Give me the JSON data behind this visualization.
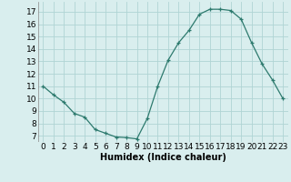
{
  "x": [
    0,
    1,
    2,
    3,
    4,
    5,
    6,
    7,
    8,
    9,
    10,
    11,
    12,
    13,
    14,
    15,
    16,
    17,
    18,
    19,
    20,
    21,
    22,
    23
  ],
  "y": [
    11,
    10.3,
    9.7,
    8.8,
    8.5,
    7.5,
    7.2,
    6.9,
    6.85,
    6.75,
    8.4,
    11.0,
    13.1,
    14.5,
    15.5,
    16.8,
    17.2,
    17.2,
    17.1,
    16.4,
    14.5,
    12.8,
    11.5,
    10.0
  ],
  "xlabel": "Humidex (Indice chaleur)",
  "xlim": [
    -0.5,
    23.5
  ],
  "ylim": [
    6.5,
    17.8
  ],
  "yticks": [
    7,
    8,
    9,
    10,
    11,
    12,
    13,
    14,
    15,
    16,
    17
  ],
  "xticks": [
    0,
    1,
    2,
    3,
    4,
    5,
    6,
    7,
    8,
    9,
    10,
    11,
    12,
    13,
    14,
    15,
    16,
    17,
    18,
    19,
    20,
    21,
    22,
    23
  ],
  "line_color": "#2d7a6e",
  "marker": "+",
  "bg_color": "#d9eeee",
  "grid_color": "#b0d4d4",
  "xlabel_fontsize": 7,
  "tick_fontsize": 6.5
}
